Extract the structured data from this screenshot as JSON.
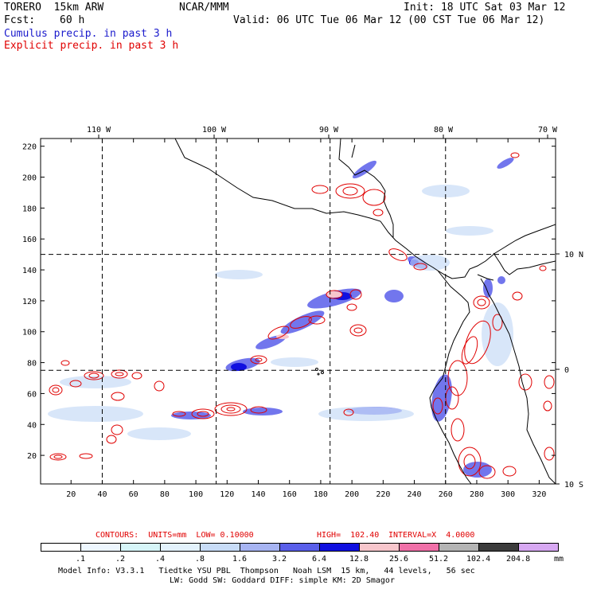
{
  "header": {
    "model": "TORERO  15km ARW",
    "org": "NCAR/MMM",
    "init": "Init: 18 UTC Sat 03 Mar 12",
    "fcst_label": "Fcst:",
    "fcst_value": "60 h",
    "valid": "Valid: 06 UTC Tue 06 Mar 12 (00 CST Tue 06 Mar 12)",
    "field1": "Cumulus precip. in past 3 h",
    "field2": "Explicit precip. in past 3 h",
    "field1_color": "#1a1acc",
    "field2_color": "#e00000"
  },
  "map": {
    "top_lon_labels": [
      "110 W",
      "100 W",
      "90 W",
      "80 W",
      "70 W"
    ],
    "right_lat_labels": [
      "10 N",
      "0",
      "10 S"
    ],
    "y_ticks": [
      "220",
      "200",
      "180",
      "160",
      "140",
      "120",
      "100",
      "80",
      "60",
      "40",
      "20"
    ],
    "x_ticks": [
      "20",
      "40",
      "60",
      "80",
      "100",
      "120",
      "140",
      "160",
      "180",
      "200",
      "220",
      "240",
      "260",
      "280",
      "300",
      "320"
    ],
    "grid_x": [
      40,
      113,
      186,
      260
    ],
    "grid_y": [
      150,
      75
    ]
  },
  "contours": {
    "label_units": "CONTOURS:  UNITS=mm  LOW= 0.10000",
    "label_high": "HIGH=  102.40",
    "label_interval": "INTERVAL=X  4.0000",
    "color": "#e00000"
  },
  "colorbar": {
    "units": "mm",
    "labels": [
      ".1",
      ".2",
      ".4",
      ".8",
      "1.6",
      "3.2",
      "6.4",
      "12.8",
      "25.6",
      "51.2",
      "102.4",
      "204.8"
    ],
    "colors": [
      "#ffffff",
      "#eef7ff",
      "#d6f5f8",
      "#e3f2fc",
      "#c8dcf7",
      "#a7b4f2",
      "#5a5fea",
      "#1010e0",
      "#f7c6cc",
      "#f070a8",
      "#b4b4b4",
      "#3c3c3c",
      "#d7a8f2"
    ]
  },
  "footer": {
    "line1": "Model Info: V3.3.1   Tiedtke YSU PBL  Thompson   Noah LSM  15 km,   44 levels,   56 sec",
    "line2": "LW: Godd SW: Goddard DIFF: simple KM: 2D Smagor"
  }
}
